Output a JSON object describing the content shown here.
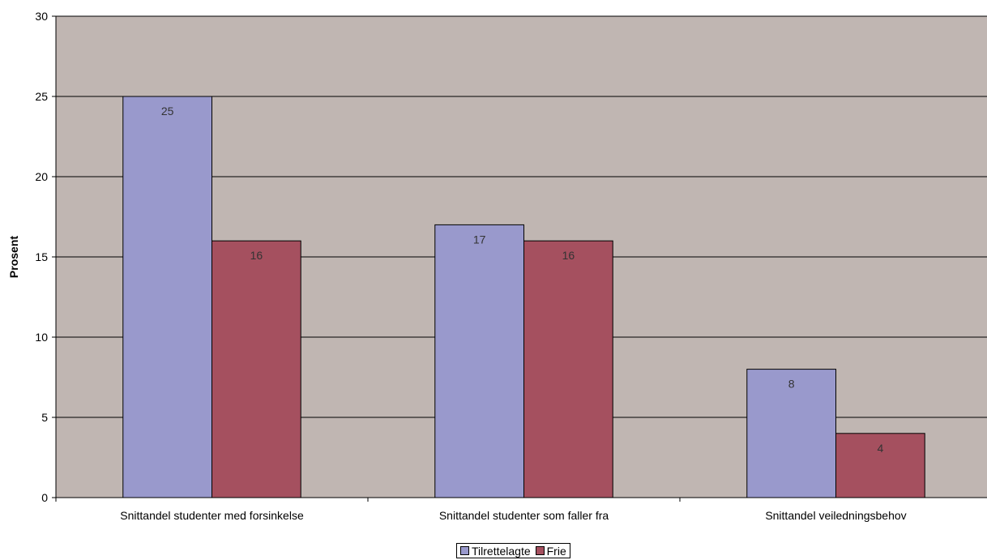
{
  "chart_data": {
    "type": "bar",
    "title": "",
    "xlabel": "",
    "ylabel": "Prosent",
    "ylim": [
      0,
      30
    ],
    "yticks": [
      0,
      5,
      10,
      15,
      20,
      25,
      30
    ],
    "grid": true,
    "legend_position": "bottom",
    "categories": [
      "Snittandel studenter med forsinkelse",
      "Snittandel studenter som faller fra",
      "Snittandel veiledningsbehov"
    ],
    "series": [
      {
        "name": "Tilrettelagte",
        "color": "#9999cc",
        "values": [
          25,
          17,
          8
        ]
      },
      {
        "name": "Frie",
        "color": "#a5505f",
        "values": [
          16,
          16,
          4
        ]
      }
    ],
    "plot_background": "#c0b6b2"
  }
}
